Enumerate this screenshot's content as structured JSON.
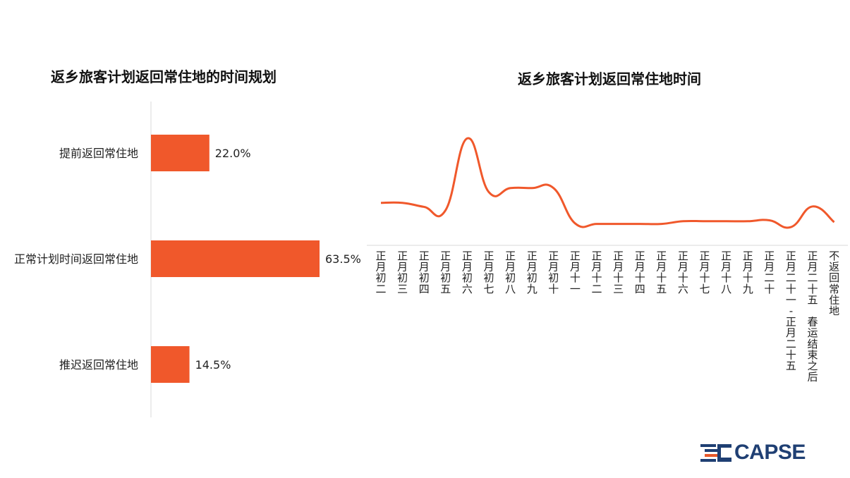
{
  "logo": {
    "text": "CAPSE",
    "color": "#1f3f73",
    "accent": "#e8582a"
  },
  "colors": {
    "bar": "#f0582b",
    "line": "#f0582b",
    "axis": "#d9d9d9"
  },
  "chart_data": [
    {
      "type": "bar",
      "orientation": "horizontal",
      "title": "返乡旅客计划返回常住地的时间规划",
      "categories": [
        "提前返回常住地",
        "正常计划时间返回常住地",
        "推迟返回常住地"
      ],
      "values": [
        22.0,
        63.5,
        14.5
      ],
      "value_labels": [
        "22.0%",
        "63.5%",
        "14.5%"
      ],
      "unit": "%",
      "grid": false,
      "legend": "none"
    },
    {
      "type": "line",
      "title": "返乡旅客计划返回常住地时间",
      "categories": [
        "正月初二",
        "正月初三",
        "正月初四",
        "正月初五",
        "正月初六",
        "正月初七",
        "正月初八",
        "正月初九",
        "正月初十",
        "正月十一",
        "正月十二",
        "正月十三",
        "正月十四",
        "正月十五",
        "正月十六",
        "正月十七",
        "正月十八",
        "正月十九",
        "正月二十",
        "正月二十一-正月二十五",
        "正月二十五 春运结束之后",
        "不返回常住地"
      ],
      "values": [
        7.6,
        7.6,
        6.7,
        6.0,
        22.0,
        10.0,
        10.9,
        10.9,
        10.9,
        3.0,
        2.9,
        2.9,
        2.9,
        2.9,
        3.5,
        3.5,
        3.5,
        3.5,
        3.7,
        2.2,
        6.8,
        3.3
      ],
      "ylim": [
        0,
        24
      ],
      "grid": false,
      "legend": "none"
    }
  ]
}
